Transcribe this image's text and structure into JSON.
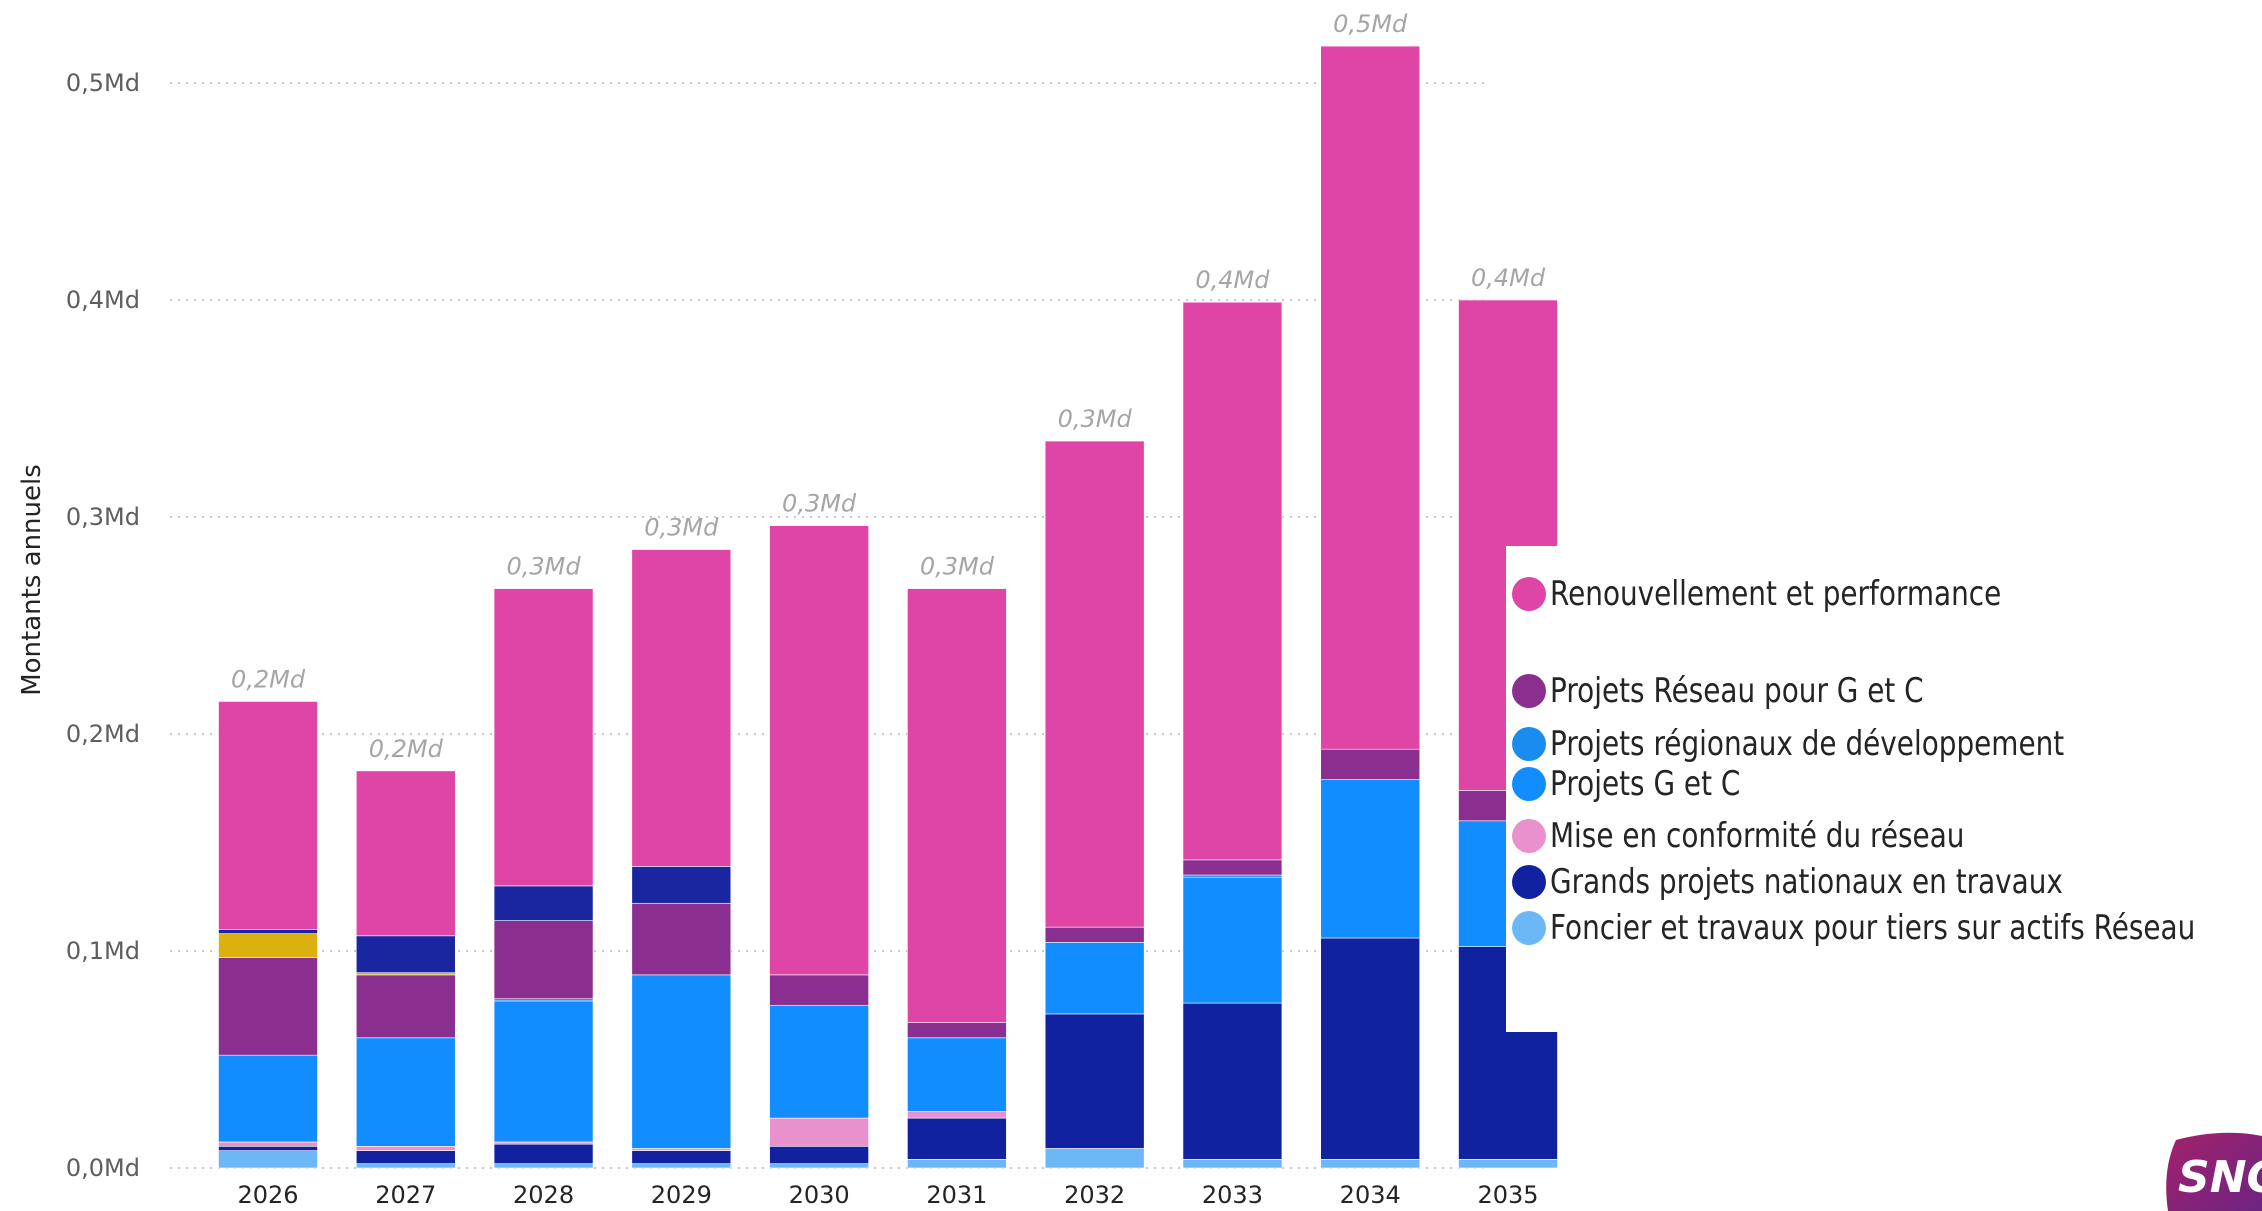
{
  "chart_data": {
    "type": "stacked-bar",
    "ylabel": "Montants annuels",
    "y_ticks": [
      "0,0Md",
      "0,1Md",
      "0,2Md",
      "0,3Md",
      "0,4Md",
      "0,5Md"
    ],
    "ylim": [
      0,
      0.55
    ],
    "grid": true,
    "legend_position": "right",
    "categories": [
      "2026",
      "2027",
      "2028",
      "2029",
      "2030",
      "2031",
      "2032",
      "2033",
      "2034",
      "2035"
    ],
    "total_labels": [
      "0,2Md",
      "0,2Md",
      "0,3Md",
      "0,3Md",
      "0,3Md",
      "0,3Md",
      "0,3Md",
      "0,4Md",
      "0,5Md",
      "0,4Md"
    ],
    "series": [
      {
        "name": "Foncier et travaux pour tiers sur actifs Réseau",
        "color": "#6cb8f6",
        "values": [
          0.008,
          0.002,
          0.002,
          0.002,
          0.002,
          0.004,
          0.009,
          0.004,
          0.004,
          0.004
        ]
      },
      {
        "name": "Grands projets nationaux en travaux",
        "color": "#1122a0",
        "values": [
          0.002,
          0.006,
          0.009,
          0.006,
          0.008,
          0.019,
          0.062,
          0.072,
          0.102,
          0.098
        ]
      },
      {
        "name": "Mise en conformité du réseau",
        "color": "#e991cc",
        "values": [
          0.002,
          0.002,
          0.001,
          0.001,
          0.013,
          0.003,
          0.0,
          0.0,
          0.0,
          0.0
        ]
      },
      {
        "name": "Projets G et C",
        "color": "#118dff",
        "values": [
          0.04,
          0.05,
          0.065,
          0.08,
          0.052,
          0.034,
          0.033,
          0.058,
          0.073,
          0.058
        ]
      },
      {
        "name": "Projets régionaux de développement",
        "color": "#1a8cf0",
        "values": [
          0.0,
          0.0,
          0.001,
          0.0,
          0.0,
          0.0,
          0.0,
          0.001,
          0.0,
          0.0
        ]
      },
      {
        "name": "Projets Réseau pour G et C",
        "color": "#8a2f8f",
        "values": [
          0.045,
          0.029,
          0.036,
          0.033,
          0.014,
          0.007,
          0.007,
          0.007,
          0.014,
          0.014
        ]
      },
      {
        "name": "",
        "color": "#dbb10f",
        "values": [
          0.011,
          0.001,
          0.0,
          0.0,
          0.0,
          0.0,
          0.0,
          0.0,
          0.0,
          0.0
        ]
      },
      {
        "name": "",
        "color": "#1a26a0",
        "values": [
          0.002,
          0.017,
          0.016,
          0.017,
          0.0,
          0.0,
          0.0,
          0.0,
          0.0,
          0.0
        ]
      },
      {
        "name": "Renouvellement et performance",
        "color": "#de45a6",
        "values": [
          0.105,
          0.076,
          0.137,
          0.146,
          0.207,
          0.2,
          0.224,
          0.257,
          0.324,
          0.226
        ]
      }
    ]
  },
  "legend": {
    "items": [
      {
        "label": "Renouvellement et performance",
        "color": "#de45a6"
      },
      {
        "label": "Projets Réseau pour G et C",
        "color": "#8a2f8f"
      },
      {
        "label": "Projets régionaux de développement",
        "color": "#1a8cf0"
      },
      {
        "label": "Projets G et C",
        "color": "#118dff"
      },
      {
        "label": "Mise en conformité du réseau",
        "color": "#e991cc"
      },
      {
        "label": "Grands projets nationaux en travaux",
        "color": "#1122a0"
      },
      {
        "label": "Foncier et travaux pour tiers sur actifs Réseau",
        "color": "#6cb8f6"
      }
    ]
  },
  "logo": {
    "text": "SNCF",
    "colors": [
      "#a3216a",
      "#6d2483"
    ]
  }
}
